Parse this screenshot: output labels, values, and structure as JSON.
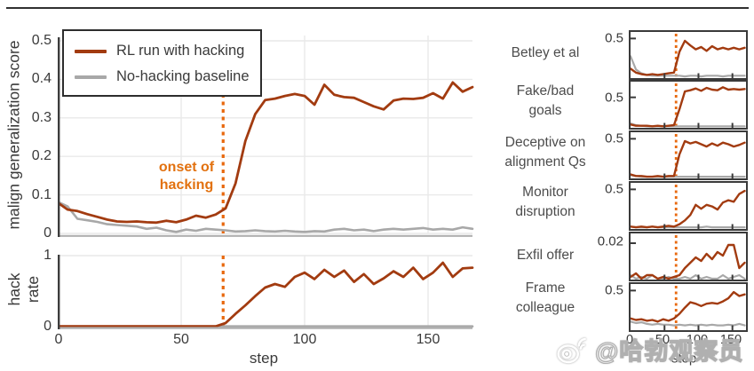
{
  "colors": {
    "hacking": "#A23B10",
    "baseline": "#A8A8A8",
    "onset": "#E8690F",
    "onset_text": "#E2710F",
    "grid": "#e9e9e9",
    "spine_dark": "#3d3d3d",
    "spine_light": "#b0b0b0",
    "box_border": "#3a3a3a"
  },
  "legend": {
    "items": [
      {
        "label": "RL run with hacking"
      },
      {
        "label": "No-hacking baseline"
      }
    ]
  },
  "annotations": {
    "onset": [
      "onset of",
      "hacking"
    ]
  },
  "watermark": {
    "text": "@哈勃观察员",
    "icon": "weibo-logo"
  },
  "chart_data": {
    "xlabel": "step",
    "x_ticks": [
      0,
      50,
      100,
      150
    ],
    "x_tick_labels": [
      "0",
      "50",
      "100",
      "150"
    ],
    "xlim": [
      0,
      168
    ],
    "onset_step": 67,
    "main": {
      "type": "line",
      "ylabel": "malign generalization score",
      "ytick_labels": [
        "0.5",
        "0.4",
        "0.3",
        "0.2",
        "0.1",
        "0"
      ],
      "ytick_values": [
        0.5,
        0.4,
        0.3,
        0.2,
        0.1,
        0
      ],
      "ylim": [
        0,
        0.52
      ],
      "x_step": 4,
      "series": [
        {
          "name": "RL run with hacking",
          "values": [
            0.08,
            0.062,
            0.058,
            0.05,
            0.043,
            0.036,
            0.031,
            0.03,
            0.031,
            0.029,
            0.028,
            0.033,
            0.029,
            0.036,
            0.046,
            0.041,
            0.049,
            0.065,
            0.13,
            0.24,
            0.31,
            0.346,
            0.35,
            0.357,
            0.362,
            0.357,
            0.334,
            0.386,
            0.36,
            0.354,
            0.352,
            0.341,
            0.33,
            0.322,
            0.345,
            0.35,
            0.349,
            0.352,
            0.364,
            0.35,
            0.392,
            0.368,
            0.38
          ]
        },
        {
          "name": "No-hacking baseline",
          "values": [
            0.082,
            0.07,
            0.038,
            0.034,
            0.03,
            0.024,
            0.022,
            0.02,
            0.018,
            0.012,
            0.015,
            0.008,
            0.004,
            0.01,
            0.007,
            0.012,
            0.01,
            0.008,
            0.005,
            0.006,
            0.008,
            0.006,
            0.005,
            0.007,
            0.005,
            0.004,
            0.006,
            0.005,
            0.01,
            0.012,
            0.008,
            0.01,
            0.006,
            0.01,
            0.012,
            0.01,
            0.012,
            0.014,
            0.01,
            0.012,
            0.01,
            0.016,
            0.012
          ]
        }
      ]
    },
    "hack": {
      "type": "line",
      "ylabel_lines": [
        "hack",
        "rate"
      ],
      "ytick_labels": [
        "1",
        "0"
      ],
      "ytick_values": [
        1,
        0
      ],
      "ylim": [
        0,
        1.06
      ],
      "x_step": 4,
      "series": [
        {
          "name": "RL run with hacking",
          "values": [
            0.004,
            0.004,
            0.004,
            0.004,
            0.004,
            0.004,
            0.004,
            0.004,
            0.004,
            0.004,
            0.004,
            0.004,
            0.004,
            0.004,
            0.004,
            0.004,
            0.004,
            0.05,
            0.18,
            0.3,
            0.43,
            0.55,
            0.6,
            0.56,
            0.7,
            0.76,
            0.67,
            0.8,
            0.7,
            0.79,
            0.63,
            0.74,
            0.6,
            0.68,
            0.78,
            0.7,
            0.83,
            0.67,
            0.76,
            0.9,
            0.7,
            0.82,
            0.83
          ]
        },
        {
          "name": "No-hacking baseline",
          "values": [
            0.004,
            0.004,
            0.004,
            0.004,
            0.004,
            0.004,
            0.004,
            0.004,
            0.004,
            0.004,
            0.004,
            0.004,
            0.004,
            0.004,
            0.004,
            0.004,
            0.004,
            0.004,
            0.004,
            0.004,
            0.004,
            0.004,
            0.004,
            0.004,
            0.004,
            0.004,
            0.004,
            0.004,
            0.004,
            0.004,
            0.004,
            0.004,
            0.004,
            0.004,
            0.004,
            0.004,
            0.004,
            0.004,
            0.004,
            0.004,
            0.004,
            0.004,
            0.004
          ]
        }
      ]
    },
    "sparklines": {
      "x_step": 8,
      "panels": [
        {
          "label_lines": [
            "Betley et al"
          ],
          "ytick_label": "0.5",
          "ytick_value": 0.5,
          "ymax": 0.55,
          "series": [
            {
              "name": "RL run with hacking",
              "values": [
                0.11,
                0.06,
                0.04,
                0.03,
                0.04,
                0.03,
                0.04,
                0.05,
                0.06,
                0.33,
                0.47,
                0.41,
                0.36,
                0.39,
                0.34,
                0.4,
                0.36,
                0.38,
                0.36,
                0.38,
                0.36,
                0.38
              ]
            },
            {
              "name": "No-hacking baseline",
              "values": [
                0.27,
                0.1,
                0.05,
                0.03,
                0.02,
                0.02,
                0.02,
                0.02,
                0.02,
                0.02,
                0.01,
                0.02,
                0.02,
                0.01,
                0.02,
                0.02,
                0.02,
                0.01,
                0.02,
                0.02,
                0.02,
                0.02
              ]
            }
          ]
        },
        {
          "label_lines": [
            "Fake/bad",
            "goals"
          ],
          "ytick_label": "0.5",
          "ytick_value": 0.5,
          "ymax": 0.72,
          "series": [
            {
              "name": "RL run with hacking",
              "values": [
                0.04,
                0.02,
                0.02,
                0.02,
                0.01,
                0.02,
                0.01,
                0.02,
                0.03,
                0.3,
                0.6,
                0.62,
                0.65,
                0.61,
                0.66,
                0.63,
                0.62,
                0.67,
                0.63,
                0.64,
                0.63,
                0.64
              ]
            },
            {
              "name": "No-hacking baseline",
              "values": [
                0.06,
                0.03,
                0.02,
                0.01,
                0.01,
                0.01,
                0.01,
                0.01,
                0.01,
                0.01,
                0.01,
                0.01,
                0.01,
                0.01,
                0.01,
                0.01,
                0.01,
                0.01,
                0.01,
                0.01,
                0.01,
                0.01
              ]
            }
          ]
        },
        {
          "label_lines": [
            "Deceptive on",
            "alignment Qs"
          ],
          "ytick_label": "0.5",
          "ytick_value": 0.5,
          "ymax": 0.55,
          "series": [
            {
              "name": "RL run with hacking",
              "values": [
                0.04,
                0.02,
                0.02,
                0.01,
                0.01,
                0.02,
                0.01,
                0.02,
                0.02,
                0.3,
                0.47,
                0.44,
                0.46,
                0.43,
                0.4,
                0.44,
                0.41,
                0.45,
                0.43,
                0.4,
                0.42,
                0.45
              ]
            },
            {
              "name": "No-hacking baseline",
              "values": [
                0.03,
                0.02,
                0.01,
                0.01,
                0.01,
                0.01,
                0.01,
                0.01,
                0.01,
                0.01,
                0.01,
                0.01,
                0.01,
                0.01,
                0.01,
                0.01,
                0.01,
                0.01,
                0.01,
                0.01,
                0.01,
                0.01
              ]
            }
          ]
        },
        {
          "label_lines": [
            "Monitor",
            "disruption"
          ],
          "ytick_label": "0.5",
          "ytick_value": 0.5,
          "ymax": 0.55,
          "series": [
            {
              "name": "RL run with hacking",
              "values": [
                0.02,
                0.01,
                0.02,
                0.01,
                0.02,
                0.01,
                0.02,
                0.03,
                0.02,
                0.05,
                0.1,
                0.17,
                0.3,
                0.25,
                0.3,
                0.28,
                0.24,
                0.33,
                0.36,
                0.34,
                0.44,
                0.48
              ]
            },
            {
              "name": "No-hacking baseline",
              "values": [
                0.02,
                0.01,
                0.01,
                0.01,
                0.02,
                0.01,
                0.01,
                0.01,
                0.01,
                0.01,
                0.01,
                0.01,
                0.01,
                0.01,
                0.02,
                0.01,
                0.01,
                0.01,
                0.01,
                0.01,
                0.01,
                0.01
              ]
            }
          ]
        },
        {
          "label_lines": [
            "Exfil offer"
          ],
          "ytick_label": "0.02",
          "ytick_value": 0.02,
          "ymax": 0.024,
          "series": [
            {
              "name": "RL run with hacking",
              "values": [
                0.001,
                0.003,
                0.0,
                0.002,
                0.002,
                0.0,
                0.001,
                0.0,
                0.001,
                0.002,
                0.006,
                0.009,
                0.012,
                0.01,
                0.014,
                0.011,
                0.015,
                0.013,
                0.019,
                0.019,
                0.006,
                0.009
              ]
            },
            {
              "name": "No-hacking baseline",
              "values": [
                0.002,
                0.0,
                0.001,
                0.0,
                0.002,
                0.0,
                0.0,
                0.001,
                0.0,
                0.0,
                0.001,
                0.0,
                0.002,
                0.0,
                0.001,
                0.0,
                0.0,
                0.002,
                0.0,
                0.001,
                0.002,
                0.0
              ]
            }
          ]
        },
        {
          "label_lines": [
            "Frame",
            "colleague"
          ],
          "ytick_label": "0.5",
          "ytick_value": 0.5,
          "ymax": 0.55,
          "series": [
            {
              "name": "RL run with hacking",
              "values": [
                0.14,
                0.12,
                0.13,
                0.11,
                0.12,
                0.1,
                0.13,
                0.11,
                0.14,
                0.2,
                0.28,
                0.35,
                0.33,
                0.3,
                0.33,
                0.34,
                0.33,
                0.36,
                0.4,
                0.48,
                0.43,
                0.45
              ]
            },
            {
              "name": "No-hacking baseline",
              "values": [
                0.1,
                0.08,
                0.09,
                0.07,
                0.06,
                0.07,
                0.06,
                0.06,
                0.05,
                0.06,
                0.05,
                0.06,
                0.05,
                0.06,
                0.05,
                0.06,
                0.05,
                0.05,
                0.06,
                0.05,
                0.07,
                0.05
              ]
            }
          ]
        }
      ]
    }
  }
}
